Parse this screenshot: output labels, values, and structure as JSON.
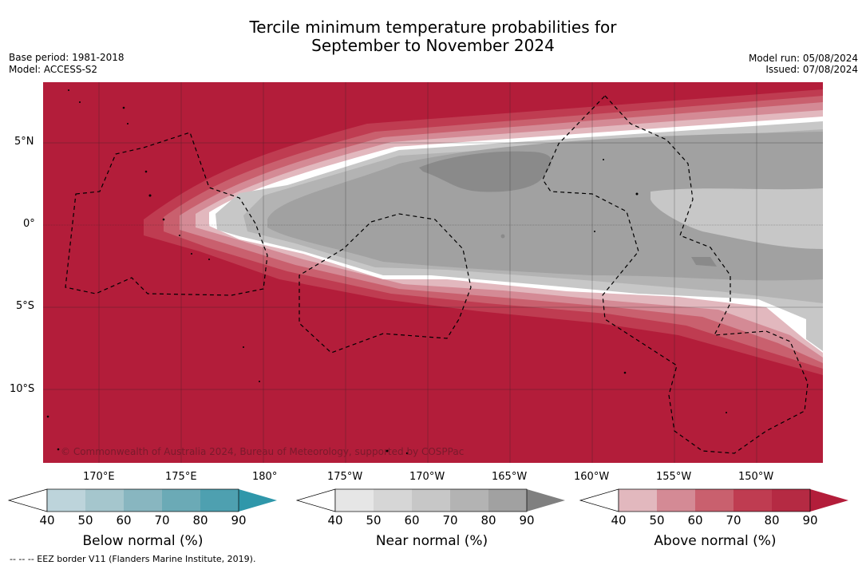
{
  "header": {
    "title_line1": "Tercile minimum temperature probabilities for",
    "title_line2": "September to November 2024",
    "base_period": "Base period: 1981-2018",
    "model": "Model: ACCESS-S2",
    "model_run": "Model run: 05/08/2024",
    "issued": "Issued: 07/08/2024"
  },
  "map": {
    "copyright": "© Commonwealth of Australia 2024, Bureau of Meteorology, supported by COSPPac",
    "lat_labels": [
      "5°N",
      "0°",
      "5°S",
      "10°S"
    ],
    "lon_labels": [
      "170°E",
      "175°E",
      "180°",
      "175°W",
      "170°W",
      "165°W",
      "160°W",
      "155°W",
      "150°W"
    ],
    "colors": {
      "above90": "#b31d3a",
      "above80": "#bf3c51",
      "above70": "#c9606e",
      "above60": "#d48a95",
      "above50": "#e2b8be",
      "near60": "#c7c7c7",
      "near70": "#b3b3b3",
      "near80": "#a1a1a1",
      "near90": "#8a8a8a"
    }
  },
  "colorbars": {
    "below": {
      "label": "Below normal (%)",
      "ticks": [
        "40",
        "50",
        "60",
        "70",
        "80",
        "90"
      ],
      "colors": [
        "#bdd4db",
        "#a5c6cd",
        "#88b6c0",
        "#6baab6",
        "#4ea0b0",
        "#2f97aa"
      ]
    },
    "near": {
      "label": "Near normal (%)",
      "ticks": [
        "40",
        "50",
        "60",
        "70",
        "80",
        "90"
      ],
      "colors": [
        "#e6e6e6",
        "#d6d6d6",
        "#c7c7c7",
        "#b3b3b3",
        "#a1a1a1",
        "#808080"
      ]
    },
    "above": {
      "label": "Above normal (%)",
      "ticks": [
        "40",
        "50",
        "60",
        "70",
        "80",
        "90"
      ],
      "colors": [
        "#e2b8be",
        "#d48a95",
        "#c9606e",
        "#bf3c51",
        "#b52a43",
        "#b31d3a"
      ]
    }
  },
  "footnote": "-- -- -- EEZ border V11 (Flanders Marine Institute, 2019)."
}
